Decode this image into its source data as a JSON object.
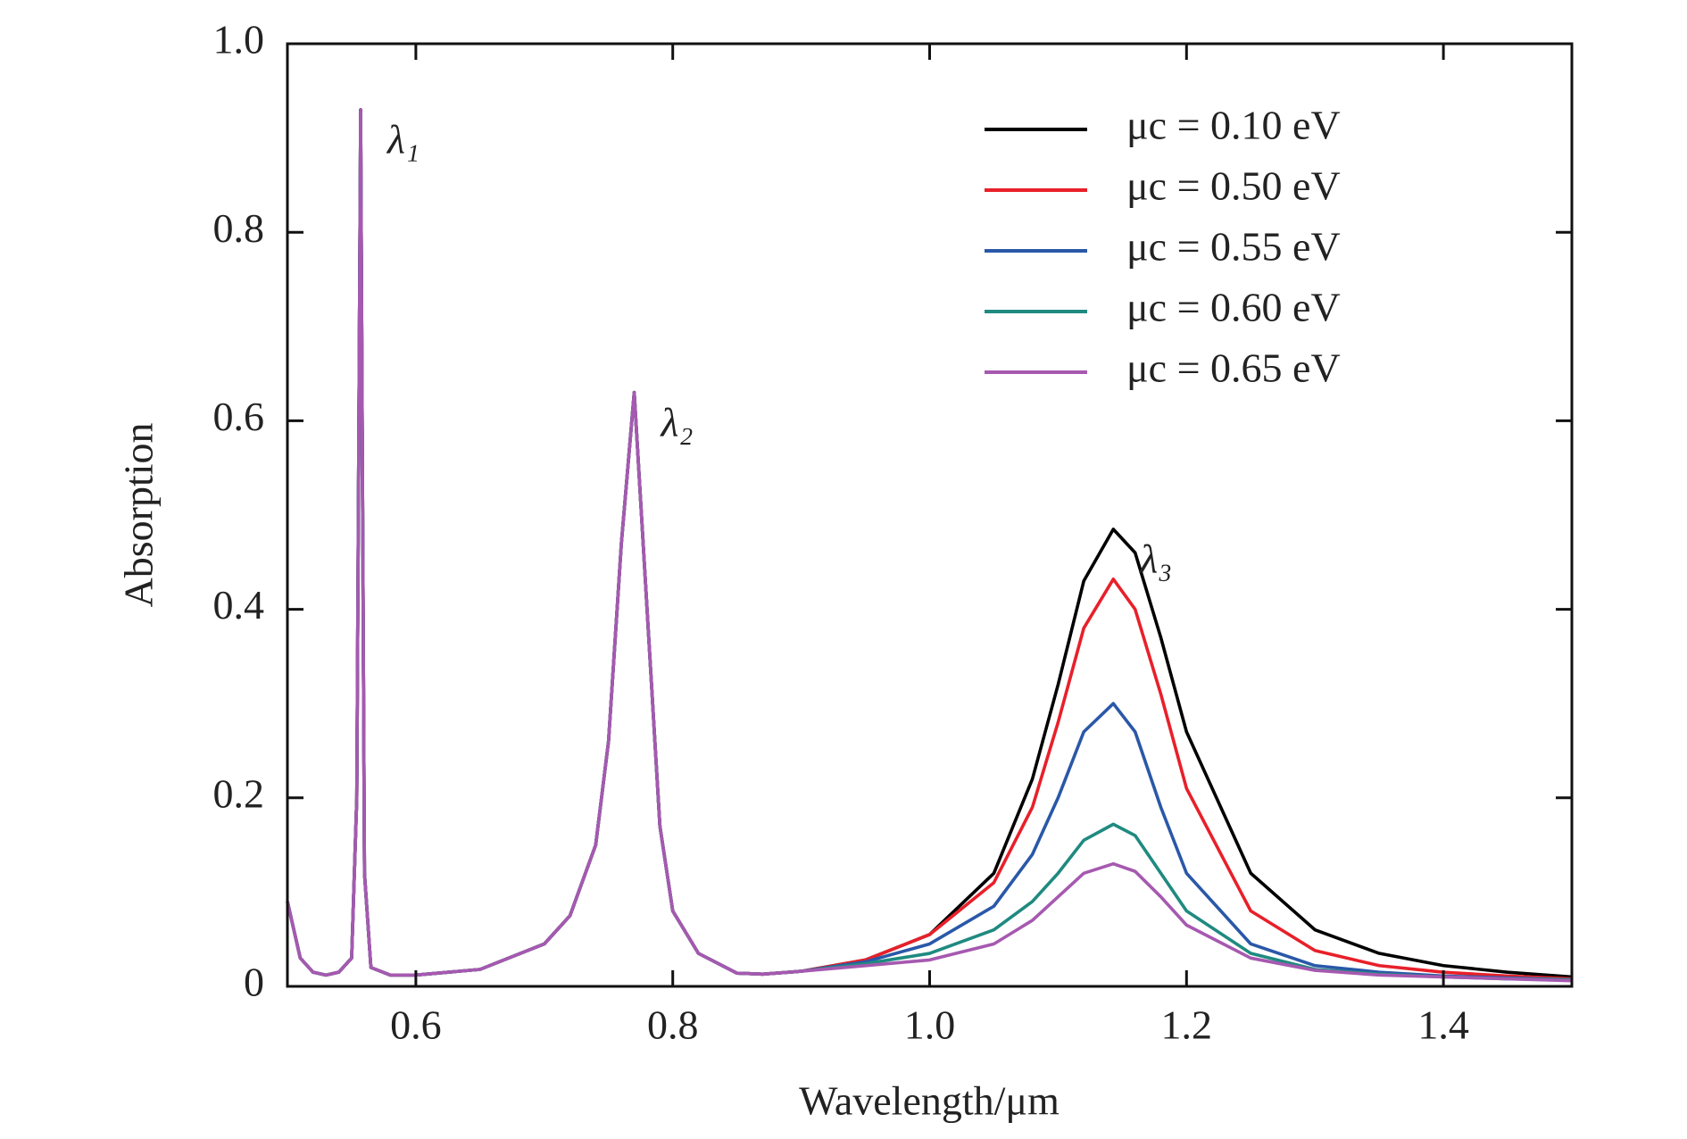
{
  "chart_data": {
    "type": "line",
    "x_label": "Wavelength/μm",
    "y_label": "Absorption",
    "x": [
      0.5,
      0.51,
      0.52,
      0.53,
      0.54,
      0.55,
      0.554,
      0.557,
      0.56,
      0.565,
      0.58,
      0.6,
      0.65,
      0.7,
      0.72,
      0.74,
      0.75,
      0.76,
      0.77,
      0.78,
      0.79,
      0.8,
      0.82,
      0.85,
      0.87,
      0.9,
      0.95,
      1.0,
      1.05,
      1.08,
      1.1,
      1.12,
      1.143,
      1.16,
      1.18,
      1.2,
      1.25,
      1.3,
      1.35,
      1.4,
      1.45,
      1.5
    ],
    "series": [
      {
        "name": "μc = 0.10 eV",
        "color": "#000000",
        "values": [
          0.09,
          0.03,
          0.015,
          0.012,
          0.015,
          0.03,
          0.2,
          0.93,
          0.12,
          0.02,
          0.012,
          0.012,
          0.018,
          0.045,
          0.075,
          0.15,
          0.26,
          0.47,
          0.63,
          0.4,
          0.17,
          0.08,
          0.035,
          0.014,
          0.013,
          0.016,
          0.028,
          0.055,
          0.12,
          0.22,
          0.32,
          0.43,
          0.485,
          0.46,
          0.37,
          0.27,
          0.12,
          0.06,
          0.035,
          0.022,
          0.015,
          0.01
        ]
      },
      {
        "name": "μc = 0.50 eV",
        "color": "#e8202a",
        "values": [
          0.09,
          0.03,
          0.015,
          0.012,
          0.015,
          0.03,
          0.2,
          0.93,
          0.12,
          0.02,
          0.012,
          0.012,
          0.018,
          0.045,
          0.075,
          0.15,
          0.26,
          0.47,
          0.63,
          0.4,
          0.17,
          0.08,
          0.035,
          0.014,
          0.013,
          0.016,
          0.028,
          0.055,
          0.11,
          0.19,
          0.28,
          0.38,
          0.432,
          0.4,
          0.31,
          0.21,
          0.08,
          0.038,
          0.022,
          0.015,
          0.011,
          0.008
        ]
      },
      {
        "name": "μc = 0.55 eV",
        "color": "#2a58a8",
        "values": [
          0.09,
          0.03,
          0.015,
          0.012,
          0.015,
          0.03,
          0.2,
          0.93,
          0.12,
          0.02,
          0.012,
          0.012,
          0.018,
          0.045,
          0.075,
          0.15,
          0.26,
          0.47,
          0.63,
          0.4,
          0.17,
          0.08,
          0.035,
          0.014,
          0.013,
          0.016,
          0.026,
          0.045,
          0.085,
          0.14,
          0.2,
          0.27,
          0.3,
          0.27,
          0.19,
          0.12,
          0.045,
          0.022,
          0.015,
          0.011,
          0.009,
          0.007
        ]
      },
      {
        "name": "μc = 0.60 eV",
        "color": "#1f8a80",
        "values": [
          0.09,
          0.03,
          0.015,
          0.012,
          0.015,
          0.03,
          0.2,
          0.93,
          0.12,
          0.02,
          0.012,
          0.012,
          0.018,
          0.045,
          0.075,
          0.15,
          0.26,
          0.47,
          0.63,
          0.4,
          0.17,
          0.08,
          0.035,
          0.014,
          0.013,
          0.016,
          0.024,
          0.035,
          0.06,
          0.09,
          0.12,
          0.155,
          0.172,
          0.16,
          0.12,
          0.08,
          0.035,
          0.018,
          0.013,
          0.01,
          0.008,
          0.007
        ]
      },
      {
        "name": "μc = 0.65 eV",
        "color": "#a659b0",
        "values": [
          0.09,
          0.03,
          0.015,
          0.012,
          0.015,
          0.03,
          0.2,
          0.93,
          0.12,
          0.02,
          0.012,
          0.012,
          0.018,
          0.045,
          0.075,
          0.15,
          0.26,
          0.47,
          0.63,
          0.4,
          0.17,
          0.08,
          0.035,
          0.014,
          0.013,
          0.016,
          0.022,
          0.028,
          0.045,
          0.07,
          0.095,
          0.12,
          0.13,
          0.122,
          0.095,
          0.065,
          0.03,
          0.017,
          0.012,
          0.01,
          0.008,
          0.006
        ]
      }
    ],
    "annotations": [
      "λ₁",
      "λ₂",
      "λ₃"
    ],
    "xlim": [
      0.5,
      1.5
    ],
    "xticks": [
      0.6,
      0.8,
      {
        "value": 1,
        "label": "1.0"
      },
      1.2,
      1.4
    ],
    "ylim": [
      0,
      1
    ],
    "yticks": [
      0,
      0.2,
      0.4,
      0.6,
      0.8,
      {
        "value": 1,
        "label": "1.0"
      }
    ],
    "grid": false,
    "legend": "upper right"
  }
}
